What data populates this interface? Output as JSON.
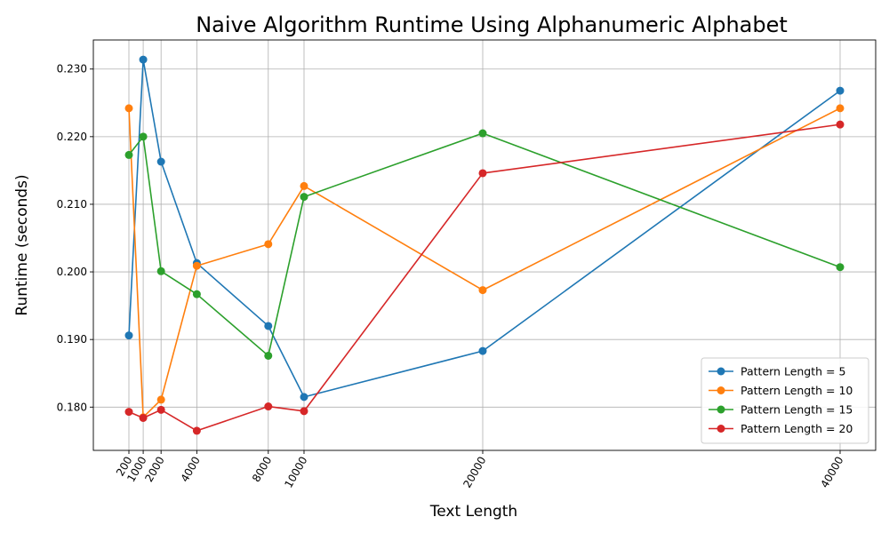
{
  "chart_data": {
    "type": "line",
    "title": "Naive Algorithm Runtime Using Alphanumeric Alphabet",
    "xlabel": "Text Length",
    "ylabel": "Runtime (seconds)",
    "x": [
      200,
      1000,
      2000,
      4000,
      8000,
      10000,
      20000,
      40000
    ],
    "xticks": [
      "200",
      "1000",
      "2000",
      "4000",
      "8000",
      "10000",
      "20000",
      "40000"
    ],
    "xlim": [
      -1790,
      41990
    ],
    "ylim": [
      0.1736,
      0.2343
    ],
    "yticks": [
      0.18,
      0.19,
      0.2,
      0.21,
      0.22,
      0.23
    ],
    "ytick_labels": [
      "0.180",
      "0.190",
      "0.200",
      "0.210",
      "0.220",
      "0.230"
    ],
    "grid": true,
    "legend_position": "bottom-right",
    "series": [
      {
        "name": "Pattern Length = 5",
        "color": "#1f77b4",
        "values": [
          0.1906,
          0.2314,
          0.2163,
          0.2013,
          0.192,
          0.1815,
          0.1883,
          0.2268
        ]
      },
      {
        "name": "Pattern Length = 10",
        "color": "#ff7f0e",
        "values": [
          0.2242,
          0.1785,
          0.1811,
          0.2009,
          0.2041,
          0.2127,
          0.1973,
          0.2242
        ]
      },
      {
        "name": "Pattern Length = 15",
        "color": "#2ca02c",
        "values": [
          0.2173,
          0.22,
          0.2001,
          0.1967,
          0.1876,
          0.2111,
          0.2205,
          0.2007
        ]
      },
      {
        "name": "Pattern Length = 20",
        "color": "#d62728",
        "values": [
          0.1793,
          0.1784,
          0.1796,
          0.1765,
          0.1801,
          0.1794,
          0.2146,
          0.2218
        ]
      }
    ]
  }
}
